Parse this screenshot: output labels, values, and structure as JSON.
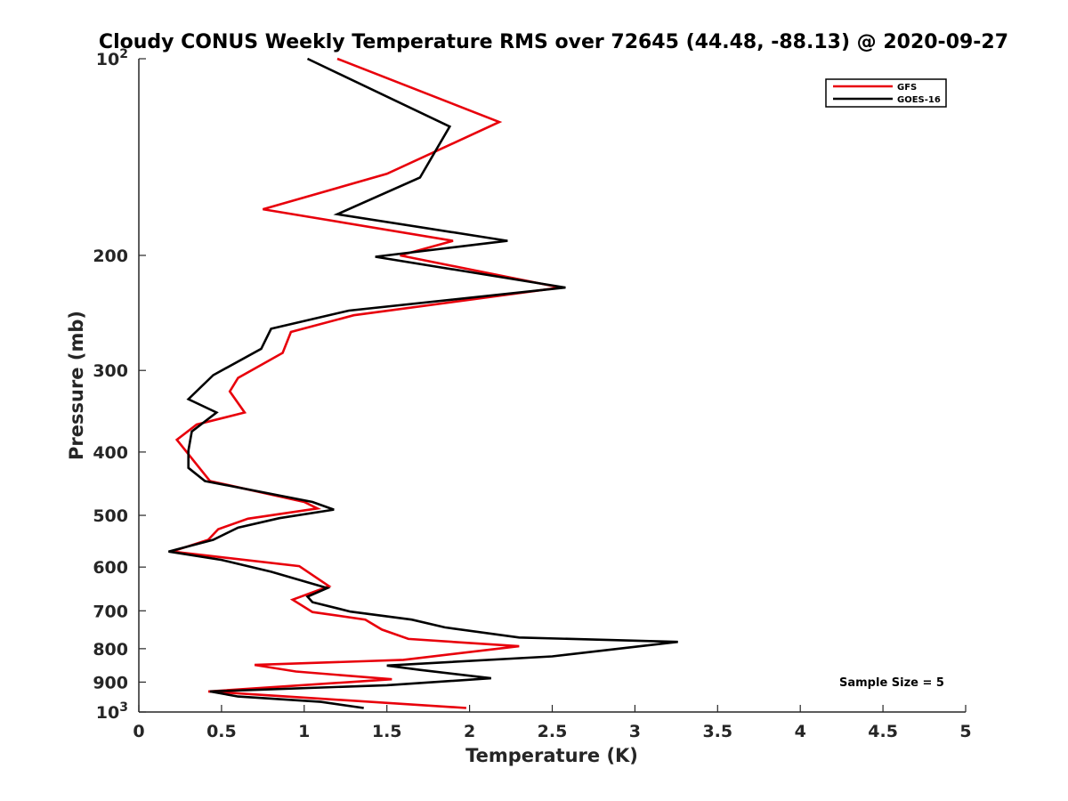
{
  "chart_data": {
    "type": "line",
    "title": "Cloudy CONUS Weekly Temperature RMS over 72645 (44.48, -88.13) @ 2020-09-27",
    "xlabel": "Temperature (K)",
    "ylabel": "Pressure (mb)",
    "xlim": [
      0,
      5
    ],
    "ylim": [
      100,
      1000
    ],
    "y_scale": "log",
    "y_reversed": true,
    "x_ticks": [
      0,
      0.5,
      1,
      1.5,
      2,
      2.5,
      3,
      3.5,
      4,
      4.5,
      5
    ],
    "x_tick_labels": [
      "0",
      "0.5",
      "1",
      "1.5",
      "2",
      "2.5",
      "3",
      "3.5",
      "4",
      "4.5",
      "5"
    ],
    "y_ticks": [
      200,
      300,
      400,
      500,
      600,
      700,
      800,
      900
    ],
    "y_tick_labels": [
      "200",
      "300",
      "400",
      "500",
      "600",
      "700",
      "800",
      "900"
    ],
    "y_end_labels": [
      {
        "value": 100,
        "base": "10",
        "exp": "2"
      },
      {
        "value": 1000,
        "base": "10",
        "exp": "3"
      }
    ],
    "legend": {
      "position": "top-right"
    },
    "annotation": "Sample Size = 5",
    "series": [
      {
        "name": "GFS",
        "color": "#e8000b",
        "points": [
          [
            1.2,
            100
          ],
          [
            2.18,
            125
          ],
          [
            1.5,
            150
          ],
          [
            0.75,
            170
          ],
          [
            1.9,
            190
          ],
          [
            1.58,
            200
          ],
          [
            2.55,
            224
          ],
          [
            1.3,
            247
          ],
          [
            0.92,
            262
          ],
          [
            0.87,
            282
          ],
          [
            0.6,
            308
          ],
          [
            0.55,
            323
          ],
          [
            0.64,
            348
          ],
          [
            0.35,
            363
          ],
          [
            0.23,
            383
          ],
          [
            0.35,
            418
          ],
          [
            0.43,
            443
          ],
          [
            1.0,
            477
          ],
          [
            1.08,
            488
          ],
          [
            0.66,
            506
          ],
          [
            0.48,
            525
          ],
          [
            0.42,
            545
          ],
          [
            0.2,
            568
          ],
          [
            0.97,
            598
          ],
          [
            1.15,
            642
          ],
          [
            0.93,
            673
          ],
          [
            1.05,
            703
          ],
          [
            1.37,
            722
          ],
          [
            1.47,
            748
          ],
          [
            1.63,
            773
          ],
          [
            2.3,
            793
          ],
          [
            1.6,
            832
          ],
          [
            0.7,
            847
          ],
          [
            0.95,
            867
          ],
          [
            1.53,
            891
          ],
          [
            0.42,
            930
          ],
          [
            1.98,
            986
          ]
        ]
      },
      {
        "name": "GOES-16",
        "color": "#000000",
        "points": [
          [
            1.02,
            100
          ],
          [
            1.88,
            127
          ],
          [
            1.7,
            152
          ],
          [
            1.2,
            173
          ],
          [
            2.23,
            190
          ],
          [
            1.43,
            201
          ],
          [
            2.58,
            224
          ],
          [
            1.27,
            243
          ],
          [
            0.8,
            259
          ],
          [
            0.74,
            278
          ],
          [
            0.45,
            305
          ],
          [
            0.3,
            332
          ],
          [
            0.47,
            348
          ],
          [
            0.32,
            372
          ],
          [
            0.3,
            398
          ],
          [
            0.3,
            423
          ],
          [
            0.4,
            443
          ],
          [
            1.05,
            477
          ],
          [
            1.18,
            490
          ],
          [
            0.85,
            505
          ],
          [
            0.6,
            522
          ],
          [
            0.45,
            545
          ],
          [
            0.18,
            568
          ],
          [
            0.5,
            585
          ],
          [
            0.8,
            610
          ],
          [
            1.14,
            646
          ],
          [
            1.02,
            666
          ],
          [
            1.05,
            679
          ],
          [
            1.28,
            702
          ],
          [
            1.65,
            722
          ],
          [
            1.85,
            742
          ],
          [
            2.3,
            769
          ],
          [
            3.26,
            781
          ],
          [
            2.5,
            822
          ],
          [
            1.5,
            849
          ],
          [
            1.7,
            862
          ],
          [
            2.13,
            888
          ],
          [
            1.5,
            910
          ],
          [
            0.43,
            930
          ],
          [
            0.6,
            947
          ],
          [
            1.1,
            965
          ],
          [
            1.36,
            986
          ]
        ]
      }
    ]
  }
}
